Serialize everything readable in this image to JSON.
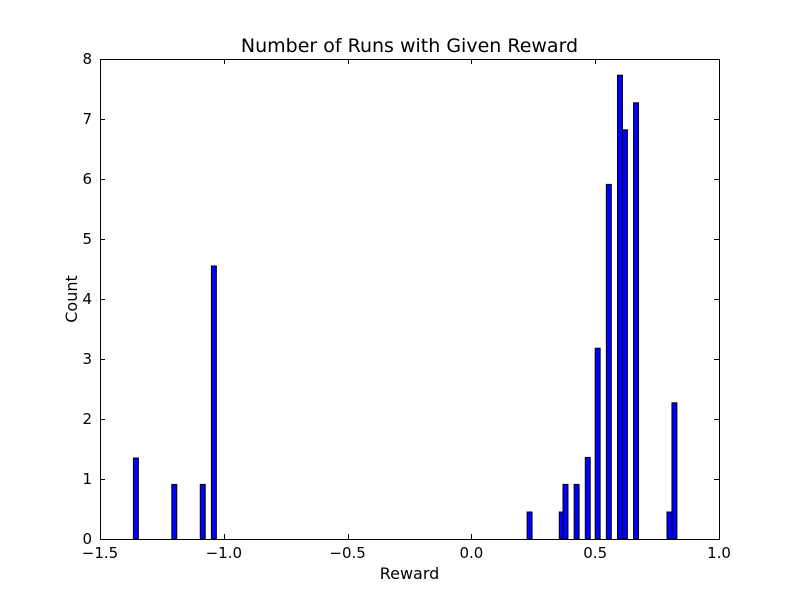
{
  "chart_data": {
    "type": "bar",
    "title": "Number of Runs with Given Reward",
    "xlabel": "Reward",
    "ylabel": "Count",
    "xlim": [
      -1.5,
      1.0
    ],
    "ylim": [
      0,
      8
    ],
    "xticks": [
      -1.5,
      -1.0,
      -0.5,
      0.0,
      0.5,
      1.0
    ],
    "xtick_labels": [
      "−1.5",
      "−1.0",
      "−0.5",
      "0.0",
      "0.5",
      "1.0"
    ],
    "yticks": [
      0,
      1,
      2,
      3,
      4,
      5,
      6,
      7,
      8
    ],
    "ytick_labels": [
      "0",
      "1",
      "2",
      "3",
      "4",
      "5",
      "6",
      "7",
      "8"
    ],
    "bar_width": 0.02,
    "bar_color": "#0000ff",
    "edge_color": "#000000",
    "grid": false,
    "x": [
      -1.355,
      -1.2,
      -1.085,
      -1.04,
      0.235,
      0.365,
      0.38,
      0.425,
      0.47,
      0.51,
      0.555,
      0.6,
      0.62,
      0.665,
      0.8,
      0.82
    ],
    "values": [
      1.35,
      0.91,
      0.91,
      4.55,
      0.45,
      0.45,
      0.91,
      0.91,
      1.36,
      3.18,
      5.91,
      7.73,
      6.82,
      7.27,
      0.45,
      2.27
    ]
  }
}
